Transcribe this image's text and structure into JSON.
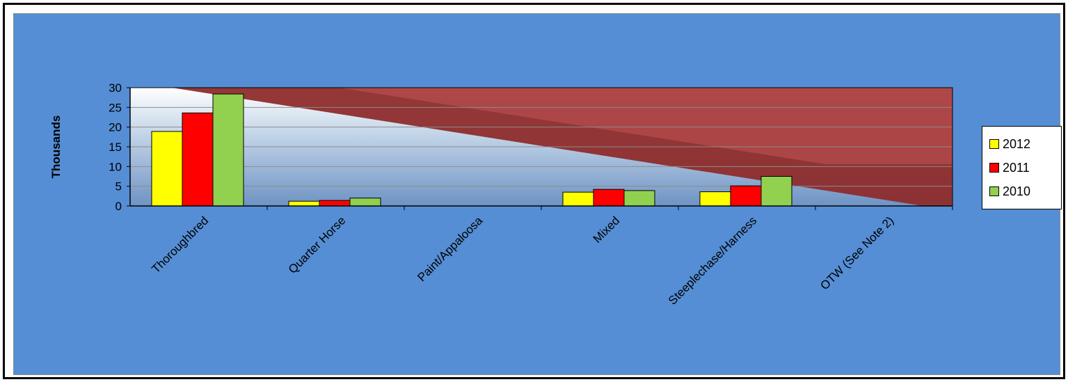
{
  "chart_data": {
    "type": "bar",
    "title": "",
    "xlabel": "",
    "ylabel": "Thousands",
    "ylim": [
      0,
      30
    ],
    "yticks": [
      "0",
      "5",
      "10",
      "15",
      "20",
      "25",
      "30"
    ],
    "categories": [
      "Thoroughbred",
      "Quarter Horse",
      "Paint/Appaloosa",
      "Mixed",
      "Steeplechase/Harness",
      "OTW (See Note 2)"
    ],
    "series": [
      {
        "name": "2012",
        "color": "#ffff00",
        "values": [
          18.9,
          1.2,
          0,
          3.5,
          3.6,
          0
        ]
      },
      {
        "name": "2011",
        "color": "#ff0000",
        "values": [
          23.6,
          1.4,
          0,
          4.2,
          5.1,
          0
        ]
      },
      {
        "name": "2010",
        "color": "#92d050",
        "values": [
          28.4,
          2.0,
          0,
          3.9,
          7.5,
          0
        ]
      }
    ],
    "legend_position": "right",
    "grid": true,
    "background_color": "#558ed5",
    "plot_band_color": "#8b2a2a"
  }
}
